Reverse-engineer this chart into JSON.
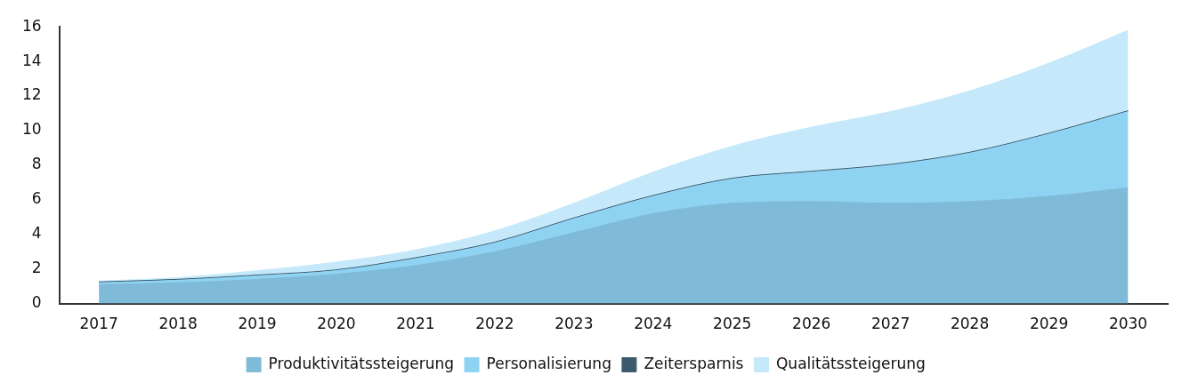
{
  "chart_data": {
    "type": "area",
    "stacked": true,
    "categories": [
      "2017",
      "2018",
      "2019",
      "2020",
      "2021",
      "2022",
      "2023",
      "2024",
      "2025",
      "2026",
      "2027",
      "2028",
      "2029",
      "2030"
    ],
    "series": [
      {
        "name": "Produktivitätssteigerung",
        "color": "#7fbad8",
        "values": [
          1.1,
          1.2,
          1.4,
          1.7,
          2.2,
          3.0,
          4.1,
          5.2,
          5.8,
          5.9,
          5.8,
          5.9,
          6.2,
          6.7
        ]
      },
      {
        "name": "Personalisierung",
        "color": "#8fd3f2",
        "values": [
          0.1,
          0.15,
          0.2,
          0.2,
          0.4,
          0.5,
          0.8,
          1.0,
          1.4,
          1.7,
          2.2,
          2.8,
          3.6,
          4.4
        ]
      },
      {
        "name": "Zeitersparnis",
        "color": "#3b5a6e",
        "values": [
          0.05,
          0.05,
          0.05,
          0.05,
          0.05,
          0.05,
          0.05,
          0.05,
          0.05,
          0.05,
          0.05,
          0.05,
          0.05,
          0.05
        ]
      },
      {
        "name": "Qualitätssteigerung",
        "color": "#c5e9fa",
        "values": [
          0.05,
          0.1,
          0.25,
          0.45,
          0.45,
          0.65,
          0.85,
          1.35,
          1.85,
          2.55,
          3.05,
          3.55,
          4.05,
          4.65
        ]
      }
    ],
    "ylim": [
      0,
      16
    ],
    "yticks": [
      0,
      2,
      4,
      6,
      8,
      10,
      12,
      14,
      16
    ],
    "grid": false,
    "legend": "bottom",
    "marker": "none"
  }
}
